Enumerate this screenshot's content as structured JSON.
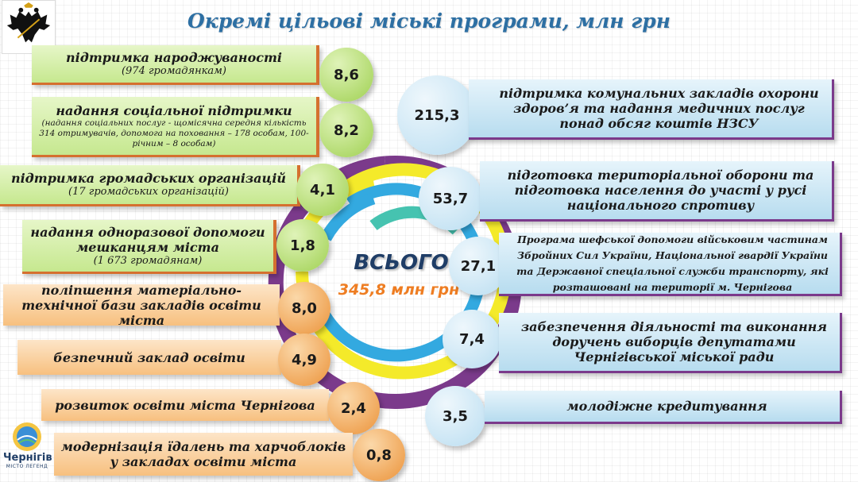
{
  "title": "Окремі цільові міські програми, млн грн",
  "total": {
    "label": "ВСЬОГО",
    "value": "345,8 млн грн"
  },
  "city_logo": {
    "name": "Чернігів",
    "slogan": "МІСТО ЛЕГЕНД"
  },
  "icons": {
    "coat_of_arms": "double-headed-eagle-icon",
    "city_logo": "city-emblem-icon"
  },
  "colors": {
    "green": "#c6e88f",
    "orange": "#f7c07f",
    "blue": "#b7dcef",
    "ring_purple": "#7b3a8b",
    "ring_yellow": "#f4ea2a",
    "ring_blue": "#33a9e0",
    "ring_teal": "#46c3b0",
    "accent_orange": "#ee7d22"
  },
  "left_programs": [
    {
      "title": "підтримка народжуваності",
      "sub": "(974 громадянкам)",
      "value": "8,6"
    },
    {
      "title": "надання соціальної підтримки",
      "sub": "(надання соціальних послуг - щомісячна середня кількість 314 отримувачів, допомога на поховання – 178 особам, 100-річним – 8 особам)",
      "value": "8,2"
    },
    {
      "title": "підтримка  громадських організацій",
      "sub": "(17 громадських організацій)",
      "value": "4,1"
    },
    {
      "title": "надання одноразової допомоги мешканцям міста",
      "sub": "(1 673 громадянам)",
      "value": "1,8"
    },
    {
      "title": "поліпшення матеріально-технічної бази закладів освіти міста",
      "sub": "",
      "value": "8,0"
    },
    {
      "title": "безпечний заклад освіти",
      "sub": "",
      "value": "4,9"
    },
    {
      "title": "розвиток освіти міста Чернігова",
      "sub": "",
      "value": "2,4"
    },
    {
      "title": "модернізація їдалень та харчоблоків у закладах освіти міста",
      "sub": "",
      "value": "0,8"
    }
  ],
  "right_programs": [
    {
      "title": "підтримка комунальних закладів охорони здоров’я та надання медичних послуг понад обсяг коштів НЗСУ",
      "value": "215,3"
    },
    {
      "title": "підготовка територіальної оборони та підготовка населення до участі у русі національного спротиву",
      "value": "53,7"
    },
    {
      "title": "Програма шефської допомоги військовим частинам Збройних Сил України, Національної гвардії України та Державної спеціальної служби транспорту, які розташовані на території м. Чернігова",
      "value": "27,1"
    },
    {
      "title": "забезпечення діяльності та виконання доручень виборців депутатами Чернігівської міської ради",
      "value": "7,4"
    },
    {
      "title": "молодіжне кредитування",
      "value": "3,5"
    }
  ]
}
